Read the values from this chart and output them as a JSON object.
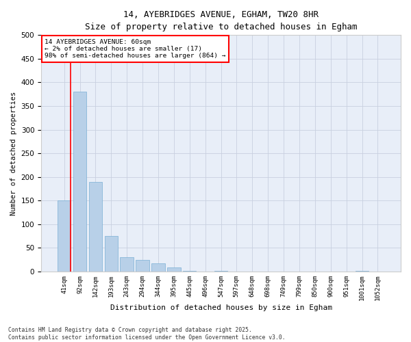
{
  "title": "14, AYEBRIDGES AVENUE, EGHAM, TW20 8HR",
  "subtitle": "Size of property relative to detached houses in Egham",
  "xlabel": "Distribution of detached houses by size in Egham",
  "ylabel": "Number of detached properties",
  "bar_color": "#b8d0e8",
  "bar_edge_color": "#7aafd4",
  "bg_color": "#e8eef8",
  "grid_color": "#c8d0e0",
  "categories": [
    "41sqm",
    "92sqm",
    "142sqm",
    "193sqm",
    "243sqm",
    "294sqm",
    "344sqm",
    "395sqm",
    "445sqm",
    "496sqm",
    "547sqm",
    "597sqm",
    "648sqm",
    "698sqm",
    "749sqm",
    "799sqm",
    "850sqm",
    "900sqm",
    "951sqm",
    "1001sqm",
    "1052sqm"
  ],
  "values": [
    150,
    380,
    190,
    75,
    30,
    25,
    18,
    8,
    1,
    0,
    1,
    0,
    0,
    0,
    0,
    0,
    0,
    0,
    0,
    1,
    0
  ],
  "annotation_box_text": "14 AYEBRIDGES AVENUE: 60sqm\n← 2% of detached houses are smaller (17)\n98% of semi-detached houses are larger (864) →",
  "ylim": [
    0,
    500
  ],
  "yticks": [
    0,
    50,
    100,
    150,
    200,
    250,
    300,
    350,
    400,
    450,
    500
  ],
  "footnote": "Contains HM Land Registry data © Crown copyright and database right 2025.\nContains public sector information licensed under the Open Government Licence v3.0.",
  "figsize": [
    6.0,
    5.0
  ],
  "dpi": 100
}
